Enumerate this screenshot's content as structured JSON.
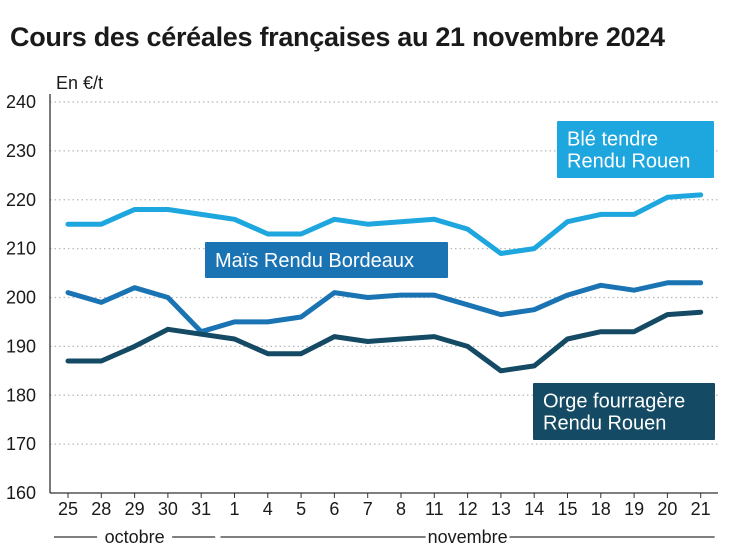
{
  "title": "Cours des céréales françaises au 21 novembre 2024",
  "chart_data": {
    "type": "line",
    "title": "Cours des céréales françaises au 21 novembre 2024",
    "ylabel": "En €/t",
    "ylim": [
      160,
      240
    ],
    "yticks": [
      160,
      170,
      180,
      190,
      200,
      210,
      220,
      230,
      240
    ],
    "grid": true,
    "categories": [
      "25",
      "28",
      "29",
      "30",
      "31",
      "1",
      "4",
      "5",
      "6",
      "7",
      "8",
      "11",
      "12",
      "13",
      "14",
      "15",
      "18",
      "19",
      "20",
      "21"
    ],
    "months": [
      {
        "label": "octobre",
        "from": 0,
        "to": 4
      },
      {
        "label": "novembre",
        "from": 5,
        "to": 19
      }
    ],
    "series": [
      {
        "name": "Blé tendre Rendu Rouen",
        "label_lines": [
          "Blé tendre",
          "Rendu Rouen"
        ],
        "color": "#1ea6de",
        "values": [
          215,
          215,
          218,
          218,
          217,
          216,
          213,
          213,
          216,
          215,
          215.5,
          216,
          214,
          209,
          210,
          215.5,
          217,
          217,
          220.5,
          221
        ]
      },
      {
        "name": "Maïs Rendu Bordeaux",
        "label_lines": [
          "Maïs Rendu Bordeaux"
        ],
        "color": "#1a74b4",
        "values": [
          201,
          199,
          202,
          200,
          193,
          195,
          195,
          196,
          201,
          200,
          200.5,
          200.5,
          198.5,
          196.5,
          197.5,
          200.5,
          202.5,
          201.5,
          203,
          203
        ]
      },
      {
        "name": "Orge fourragère Rendu Rouen",
        "label_lines": [
          "Orge fourragère",
          "Rendu Rouen"
        ],
        "color": "#144a63",
        "values": [
          187,
          187,
          190,
          193.5,
          192.5,
          191.5,
          188.5,
          188.5,
          192,
          191,
          191.5,
          192,
          190,
          185,
          186,
          191.5,
          193,
          193,
          196.5,
          197
        ]
      }
    ]
  }
}
